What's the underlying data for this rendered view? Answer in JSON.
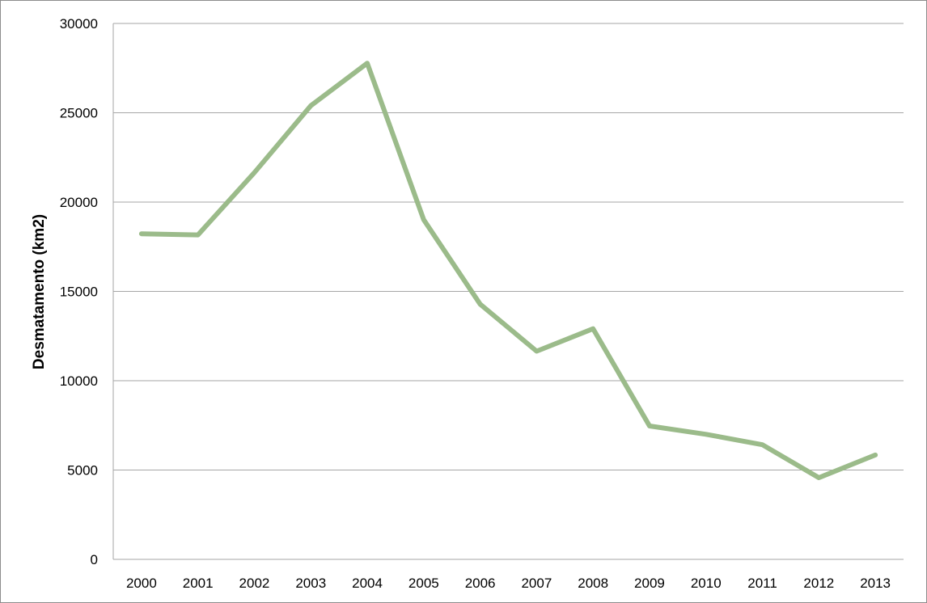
{
  "chart_data": {
    "type": "line",
    "title": "",
    "xlabel": "",
    "ylabel": "Desmatamento (km2)",
    "categories": [
      "2000",
      "2001",
      "2002",
      "2003",
      "2004",
      "2005",
      "2006",
      "2007",
      "2008",
      "2009",
      "2010",
      "2011",
      "2012",
      "2013"
    ],
    "series": [
      {
        "values": [
          18226,
          18165,
          21651,
          25396,
          27772,
          19014,
          14286,
          11651,
          12911,
          7464,
          7000,
          6418,
          4571,
          5843
        ],
        "color": "#9bbb8a"
      }
    ],
    "ylim": [
      0,
      30000
    ],
    "yticks": [
      0,
      5000,
      10000,
      15000,
      20000,
      25000,
      30000
    ],
    "grid": true,
    "legend": "none"
  }
}
